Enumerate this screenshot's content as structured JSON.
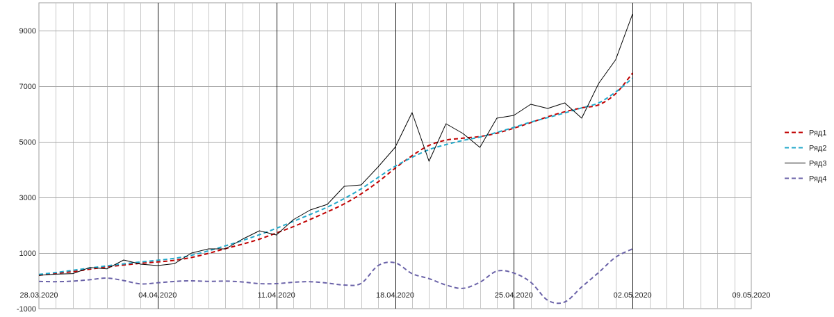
{
  "chart_data": {
    "type": "line",
    "grid": true,
    "legend_position": "right",
    "ylim": [
      -1000,
      10000
    ],
    "y_ticks": [
      -1000,
      1000,
      3000,
      5000,
      7000,
      9000
    ],
    "y_tick_labels": [
      "-1000",
      "1000",
      "3000",
      "5000",
      "7000",
      "9000"
    ],
    "x_ticks": [
      "2020-03-28",
      "2020-04-04",
      "2020-04-11",
      "2020-04-18",
      "2020-04-25",
      "2020-05-02",
      "2020-05-09"
    ],
    "x_tick_labels": [
      "28.03.2020",
      "04.04.2020",
      "11.04.2020",
      "18.04.2020",
      "25.04.2020",
      "02.05.2020",
      "09.05.2020"
    ],
    "x_range": [
      "2020-03-28",
      "2020-05-09"
    ],
    "x": [
      "2020-03-28",
      "2020-03-29",
      "2020-03-30",
      "2020-03-31",
      "2020-04-01",
      "2020-04-02",
      "2020-04-03",
      "2020-04-04",
      "2020-04-05",
      "2020-04-06",
      "2020-04-07",
      "2020-04-08",
      "2020-04-09",
      "2020-04-10",
      "2020-04-11",
      "2020-04-12",
      "2020-04-13",
      "2020-04-14",
      "2020-04-15",
      "2020-04-16",
      "2020-04-17",
      "2020-04-18",
      "2020-04-19",
      "2020-04-20",
      "2020-04-21",
      "2020-04-22",
      "2020-04-23",
      "2020-04-24",
      "2020-04-25",
      "2020-04-26",
      "2020-04-27",
      "2020-04-28",
      "2020-04-29",
      "2020-04-30",
      "2020-05-01",
      "2020-05-02"
    ],
    "series": [
      {
        "name": "Ряд1",
        "color": "#c00000",
        "dash": "dashed",
        "values": [
          200,
          270,
          330,
          420,
          500,
          570,
          630,
          680,
          740,
          840,
          990,
          1160,
          1320,
          1500,
          1720,
          1950,
          2210,
          2480,
          2770,
          3130,
          3560,
          4050,
          4500,
          4870,
          5060,
          5130,
          5190,
          5310,
          5490,
          5690,
          5900,
          6080,
          6220,
          6330,
          6730,
          7470
        ]
      },
      {
        "name": "Ряд2",
        "color": "#1fa7c9",
        "dash": "dashed",
        "values": [
          230,
          300,
          380,
          460,
          540,
          610,
          680,
          740,
          810,
          920,
          1080,
          1260,
          1450,
          1660,
          1890,
          2140,
          2390,
          2650,
          2960,
          3310,
          3720,
          4120,
          4440,
          4720,
          4900,
          5050,
          5170,
          5340,
          5520,
          5710,
          5870,
          6040,
          6220,
          6400,
          6790,
          7290
        ]
      },
      {
        "name": "Ряд3",
        "color": "#000000",
        "dash": "solid",
        "values": [
          200,
          240,
          260,
          480,
          430,
          750,
          600,
          550,
          620,
          1000,
          1150,
          1150,
          1500,
          1800,
          1650,
          2200,
          2550,
          2750,
          3400,
          3450,
          4100,
          4800,
          6050,
          4300,
          5650,
          5300,
          4800,
          5850,
          5950,
          6350,
          6200,
          6400,
          5850,
          7100,
          7950,
          9600
        ]
      },
      {
        "name": "Ряд4",
        "color": "#6a62a8",
        "dash": "dashed",
        "values": [
          -20,
          -30,
          -10,
          40,
          100,
          10,
          -110,
          -70,
          -20,
          0,
          -20,
          -10,
          -40,
          -100,
          -100,
          -50,
          -30,
          -80,
          -150,
          -90,
          550,
          650,
          260,
          80,
          -150,
          -270,
          -50,
          350,
          280,
          -50,
          -700,
          -760,
          -220,
          300,
          850,
          1150
        ]
      }
    ],
    "title": "",
    "xlabel": "",
    "ylabel": ""
  }
}
